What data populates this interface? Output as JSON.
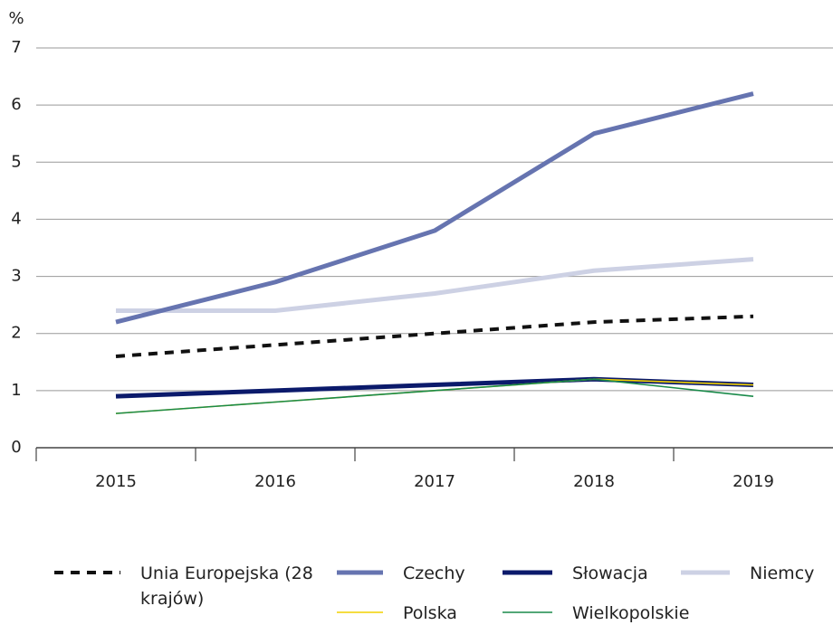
{
  "chart_data": {
    "type": "line",
    "y_label": "%",
    "categories": [
      "2015",
      "2016",
      "2017",
      "2018",
      "2019"
    ],
    "series": [
      {
        "name": "Unia Europejska (28 krajów)",
        "color": "#111111",
        "dashed": true,
        "values": [
          1.6,
          1.8,
          2.0,
          2.2,
          2.3
        ]
      },
      {
        "name": "Czechy",
        "color": "#6674b0",
        "values": [
          2.2,
          2.9,
          3.8,
          5.5,
          6.2
        ]
      },
      {
        "name": "Słowacja",
        "color": "#0b1a6b",
        "values": [
          0.9,
          1.0,
          1.1,
          1.2,
          1.1
        ]
      },
      {
        "name": "Niemcy",
        "color": "#cdd1e4",
        "values": [
          2.4,
          2.4,
          2.7,
          3.1,
          3.3
        ]
      },
      {
        "name": "Polska",
        "color": "#f2d200",
        "values": [
          0.6,
          0.8,
          1.0,
          1.2,
          1.1
        ]
      },
      {
        "name": "Wielkopolskie",
        "color": "#1a8a4a",
        "values": [
          0.6,
          0.8,
          1.0,
          1.2,
          0.9
        ]
      }
    ],
    "ylim": [
      0,
      7
    ],
    "yticks": [
      0,
      1,
      2,
      3,
      4,
      5,
      6,
      7
    ],
    "grid": true
  }
}
